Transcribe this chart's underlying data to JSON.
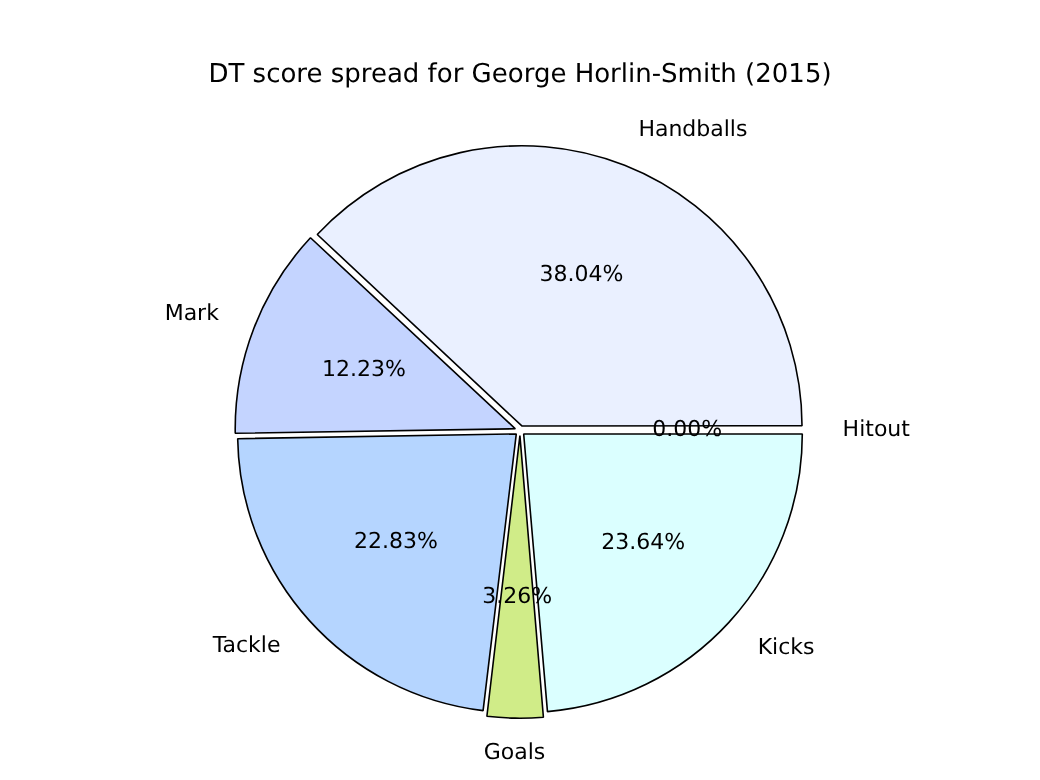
{
  "chart_data": {
    "type": "pie",
    "title": "DT score spread for George Horlin-Smith (2015)",
    "categories": [
      "Hitout",
      "Kicks",
      "Goals",
      "Tackle",
      "Mark",
      "Handballs"
    ],
    "values": [
      0.0,
      23.64,
      3.26,
      22.83,
      12.23,
      38.04
    ],
    "value_labels": [
      "0.00%",
      "23.64%",
      "3.26%",
      "22.83%",
      "12.23%",
      "38.04%"
    ],
    "colors": [
      "#d8d8d8",
      "#dbffff",
      "#d0ec88",
      "#b5d5ff",
      "#c4d4ff",
      "#eaf0ff"
    ]
  }
}
